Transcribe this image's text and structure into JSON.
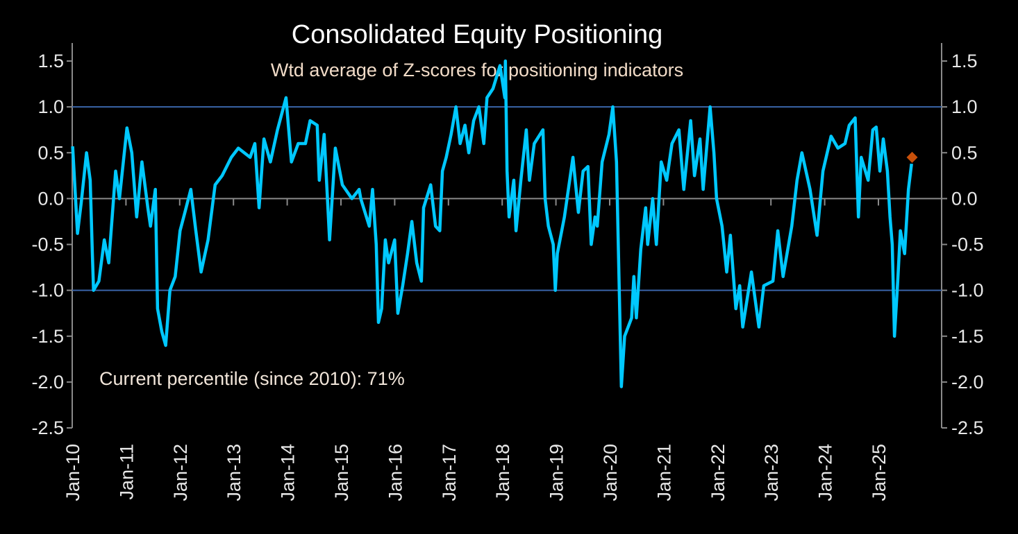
{
  "chart_data": {
    "type": "line",
    "title": "Consolidated Equity Positioning",
    "subtitle": "Wtd average of Z-scores for positioning indicators",
    "annotation": "Current percentile (since 2010): 71%",
    "xlabel": "",
    "ylabel": "",
    "ylim": [
      -2.5,
      1.5
    ],
    "yticks": [
      "1.5",
      "1.0",
      "0.5",
      "0.0",
      "-0.5",
      "-1.0",
      "-1.5",
      "-2.0",
      "-2.5"
    ],
    "xticks": [
      "Jan-10",
      "Jan-11",
      "Jan-12",
      "Jan-13",
      "Jan-14",
      "Jan-15",
      "Jan-16",
      "Jan-17",
      "Jan-18",
      "Jan-19",
      "Jan-20",
      "Jan-21",
      "Jan-22",
      "Jan-23",
      "Jan-24",
      "Jan-25"
    ],
    "reference_lines": [
      1.0,
      -1.0
    ],
    "grid": false,
    "colors": {
      "line": "#00c8ff",
      "marker": "#c8500a",
      "reference": "#3a64a8",
      "axis": "#8a8a8a",
      "subtitle": "#f2dcc8"
    },
    "series": [
      {
        "points": [
          [
            "2010-01-04",
            0.57
          ],
          [
            "2010-02-06",
            -0.38
          ],
          [
            "2010-03-03",
            -0.05
          ],
          [
            "2010-04-08",
            0.5
          ],
          [
            "2010-05-03",
            0.2
          ],
          [
            "2010-05-18",
            -0.6
          ],
          [
            "2010-05-26",
            -1.0
          ],
          [
            "2010-07-01",
            -0.9
          ],
          [
            "2010-08-07",
            -0.45
          ],
          [
            "2010-09-06",
            -0.7
          ],
          [
            "2010-10-23",
            0.3
          ],
          [
            "2010-11-18",
            0.0
          ],
          [
            "2011-01-08",
            0.77
          ],
          [
            "2011-02-10",
            0.5
          ],
          [
            "2011-03-15",
            -0.2
          ],
          [
            "2011-04-20",
            0.4
          ],
          [
            "2011-05-30",
            -0.1
          ],
          [
            "2011-06-17",
            -0.3
          ],
          [
            "2011-07-20",
            0.1
          ],
          [
            "2011-08-04",
            -1.2
          ],
          [
            "2011-09-02",
            -1.45
          ],
          [
            "2011-09-28",
            -1.6
          ],
          [
            "2011-10-27",
            -1.0
          ],
          [
            "2011-12-02",
            -0.85
          ],
          [
            "2012-01-04",
            -0.35
          ],
          [
            "2012-02-06",
            -0.15
          ],
          [
            "2012-03-17",
            0.1
          ],
          [
            "2012-04-20",
            -0.35
          ],
          [
            "2012-05-26",
            -0.8
          ],
          [
            "2012-07-12",
            -0.45
          ],
          [
            "2012-08-29",
            0.15
          ],
          [
            "2012-10-16",
            0.25
          ],
          [
            "2012-12-17",
            0.45
          ],
          [
            "2013-02-03",
            0.55
          ],
          [
            "2013-04-24",
            0.45
          ],
          [
            "2013-05-26",
            0.6
          ],
          [
            "2013-06-24",
            -0.1
          ],
          [
            "2013-07-27",
            0.65
          ],
          [
            "2013-09-09",
            0.4
          ],
          [
            "2013-10-27",
            0.75
          ],
          [
            "2013-12-24",
            1.1
          ],
          [
            "2014-01-30",
            0.4
          ],
          [
            "2014-03-17",
            0.6
          ],
          [
            "2014-05-05",
            0.6
          ],
          [
            "2014-06-06",
            0.85
          ],
          [
            "2014-07-24",
            0.8
          ],
          [
            "2014-08-07",
            0.2
          ],
          [
            "2014-09-09",
            0.7
          ],
          [
            "2014-10-16",
            -0.45
          ],
          [
            "2014-11-24",
            0.55
          ],
          [
            "2015-01-11",
            0.15
          ],
          [
            "2015-03-17",
            0.0
          ],
          [
            "2015-05-05",
            0.1
          ],
          [
            "2015-05-16",
            0.0
          ],
          [
            "2015-07-13",
            -0.3
          ],
          [
            "2015-08-04",
            0.1
          ],
          [
            "2015-08-29",
            -0.5
          ],
          [
            "2015-09-13",
            -1.35
          ],
          [
            "2015-10-05",
            -1.2
          ],
          [
            "2015-10-30",
            -0.45
          ],
          [
            "2015-11-21",
            -0.7
          ],
          [
            "2016-01-01",
            -0.45
          ],
          [
            "2016-01-23",
            -1.25
          ],
          [
            "2016-02-25",
            -0.95
          ],
          [
            "2016-03-29",
            -0.6
          ],
          [
            "2016-04-27",
            -0.25
          ],
          [
            "2016-05-30",
            -0.7
          ],
          [
            "2016-07-01",
            -0.9
          ],
          [
            "2016-07-16",
            -0.1
          ],
          [
            "2016-09-02",
            0.15
          ],
          [
            "2016-10-05",
            -0.3
          ],
          [
            "2016-11-03",
            -0.35
          ],
          [
            "2016-11-21",
            0.3
          ],
          [
            "2016-12-17",
            0.45
          ],
          [
            "2017-01-19",
            0.7
          ],
          [
            "2017-02-21",
            1.0
          ],
          [
            "2017-03-21",
            0.6
          ],
          [
            "2017-04-23",
            0.8
          ],
          [
            "2017-05-19",
            0.5
          ],
          [
            "2017-06-21",
            0.85
          ],
          [
            "2017-07-27",
            1.0
          ],
          [
            "2017-08-29",
            0.6
          ],
          [
            "2017-09-20",
            1.1
          ],
          [
            "2017-10-31",
            1.2
          ],
          [
            "2017-12-17",
            1.45
          ],
          [
            "2018-01-19",
            1.1
          ],
          [
            "2018-01-23",
            1.5
          ],
          [
            "2018-02-03",
            0.3
          ],
          [
            "2018-02-17",
            -0.2
          ],
          [
            "2018-03-21",
            0.2
          ],
          [
            "2018-04-05",
            -0.35
          ],
          [
            "2018-05-08",
            0.2
          ],
          [
            "2018-06-14",
            0.75
          ],
          [
            "2018-07-05",
            0.2
          ],
          [
            "2018-08-07",
            0.6
          ],
          [
            "2018-10-05",
            0.75
          ],
          [
            "2018-10-20",
            0.0
          ],
          [
            "2018-11-11",
            -0.3
          ],
          [
            "2018-12-14",
            -0.5
          ],
          [
            "2018-12-28",
            -1.0
          ],
          [
            "2019-01-11",
            -0.6
          ],
          [
            "2019-02-28",
            -0.2
          ],
          [
            "2019-04-27",
            0.45
          ],
          [
            "2019-06-03",
            -0.15
          ],
          [
            "2019-07-05",
            0.3
          ],
          [
            "2019-08-07",
            0.35
          ],
          [
            "2019-08-29",
            -0.5
          ],
          [
            "2019-09-24",
            -0.2
          ],
          [
            "2019-10-09",
            -0.3
          ],
          [
            "2019-11-11",
            0.4
          ],
          [
            "2019-12-28",
            0.7
          ],
          [
            "2020-01-23",
            1.0
          ],
          [
            "2020-02-17",
            0.4
          ],
          [
            "2020-03-07",
            -1.0
          ],
          [
            "2020-03-21",
            -2.05
          ],
          [
            "2020-04-12",
            -1.5
          ],
          [
            "2020-05-30",
            -1.3
          ],
          [
            "2020-06-14",
            -0.85
          ],
          [
            "2020-07-01",
            -1.3
          ],
          [
            "2020-07-31",
            -0.55
          ],
          [
            "2020-09-02",
            -0.1
          ],
          [
            "2020-09-16",
            -0.5
          ],
          [
            "2020-10-20",
            0.0
          ],
          [
            "2020-11-14",
            -0.5
          ],
          [
            "2020-12-17",
            0.4
          ],
          [
            "2021-01-23",
            0.2
          ],
          [
            "2021-02-28",
            0.6
          ],
          [
            "2021-04-16",
            0.75
          ],
          [
            "2021-05-19",
            0.1
          ],
          [
            "2021-07-05",
            0.85
          ],
          [
            "2021-07-31",
            0.25
          ],
          [
            "2021-09-06",
            0.65
          ],
          [
            "2021-09-28",
            0.1
          ],
          [
            "2021-11-14",
            1.0
          ],
          [
            "2021-12-10",
            0.5
          ],
          [
            "2021-12-28",
            0.0
          ],
          [
            "2022-02-03",
            -0.3
          ],
          [
            "2022-03-07",
            -0.8
          ],
          [
            "2022-04-01",
            -0.4
          ],
          [
            "2022-05-08",
            -1.2
          ],
          [
            "2022-06-03",
            -0.95
          ],
          [
            "2022-06-24",
            -1.4
          ],
          [
            "2022-08-22",
            -0.8
          ],
          [
            "2022-10-12",
            -1.4
          ],
          [
            "2022-11-14",
            -0.95
          ],
          [
            "2023-01-15",
            -0.9
          ],
          [
            "2023-02-17",
            -0.35
          ],
          [
            "2023-03-25",
            -0.85
          ],
          [
            "2023-05-23",
            -0.3
          ],
          [
            "2023-06-28",
            0.2
          ],
          [
            "2023-07-31",
            0.5
          ],
          [
            "2023-09-24",
            0.1
          ],
          [
            "2023-11-11",
            -0.4
          ],
          [
            "2023-12-21",
            0.3
          ],
          [
            "2024-02-14",
            0.68
          ],
          [
            "2024-04-01",
            0.55
          ],
          [
            "2024-05-19",
            0.6
          ],
          [
            "2024-06-17",
            0.8
          ],
          [
            "2024-07-27",
            0.88
          ],
          [
            "2024-08-18",
            -0.2
          ],
          [
            "2024-09-06",
            0.45
          ],
          [
            "2024-10-23",
            0.2
          ],
          [
            "2024-11-24",
            0.75
          ],
          [
            "2024-12-17",
            0.78
          ],
          [
            "2025-01-11",
            0.3
          ],
          [
            "2025-02-03",
            0.65
          ],
          [
            "2025-03-03",
            0.3
          ],
          [
            "2025-03-21",
            -0.2
          ],
          [
            "2025-04-05",
            -0.5
          ],
          [
            "2025-04-20",
            -1.5
          ],
          [
            "2025-05-12",
            -0.9
          ],
          [
            "2025-05-30",
            -0.35
          ],
          [
            "2025-06-28",
            -0.6
          ],
          [
            "2025-07-24",
            0.1
          ],
          [
            "2025-08-14",
            0.38
          ]
        ]
      }
    ],
    "current_marker": {
      "date": "2025-08-18",
      "value": 0.45
    }
  }
}
